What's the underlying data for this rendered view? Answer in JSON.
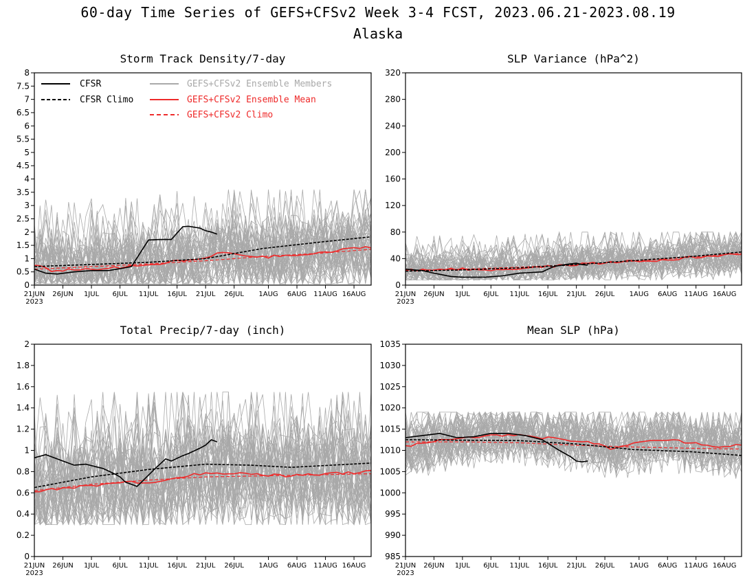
{
  "figure": {
    "title": "60-day Time Series of GEFS+CFSv2 Week 3-4 FCST, 2023.06.21-2023.08.19",
    "subtitle": "Alaska"
  },
  "colors": {
    "cfsr": "#000000",
    "members": "#a9a9a9",
    "ens_mean": "#ee2a2a"
  },
  "legend": {
    "cfsr": "CFSR",
    "cfsr_climo": "CFSR Climo",
    "members": "GEFS+CFSv2 Ensemble Members",
    "ens_mean": "GEFS+CFSv2 Ensemble Mean",
    "climo": "GEFS+CFSv2 Climo"
  },
  "x_ticks": [
    "21JUN",
    "26JUN",
    "1JUL",
    "6JUL",
    "11JUL",
    "16JUL",
    "21JUL",
    "26JUL",
    "1AUG",
    "6AUG",
    "11AUG",
    "16AUG"
  ],
  "x_tick_days": [
    0,
    5,
    10,
    15,
    20,
    25,
    30,
    35,
    41,
    46,
    51,
    56
  ],
  "x_year": "2023",
  "chart_data": [
    {
      "type": "line",
      "title": "Storm Track Density/7-day",
      "ylim": [
        0,
        8
      ],
      "yticks": [
        "0",
        "0.5",
        "1",
        "1.5",
        "2",
        "2.5",
        "3",
        "3.5",
        "4",
        "4.5",
        "5",
        "5.5",
        "6",
        "6.5",
        "7",
        "7.5",
        "8"
      ],
      "ytick_values": [
        0,
        0.5,
        1,
        1.5,
        2,
        2.5,
        3,
        3.5,
        4,
        4.5,
        5,
        5.5,
        6,
        6.5,
        7,
        7.5,
        8
      ],
      "member_spread": [
        0.05,
        3.6
      ],
      "cfsr": {
        "x": [
          0,
          2,
          4,
          7,
          10,
          13,
          15,
          17,
          20,
          22,
          24,
          26,
          27,
          29,
          30,
          31,
          32
        ],
        "y": [
          0.6,
          0.45,
          0.42,
          0.5,
          0.55,
          0.55,
          0.62,
          0.7,
          1.7,
          1.72,
          1.72,
          2.2,
          2.22,
          2.15,
          2.05,
          2.0,
          1.92
        ]
      },
      "cfsr_climo": {
        "x": [
          0,
          10,
          20,
          30,
          40,
          50,
          59
        ],
        "y": [
          0.7,
          0.78,
          0.86,
          1.0,
          1.38,
          1.62,
          1.82
        ]
      },
      "ens_mean": {
        "x": [
          0,
          3,
          6,
          10,
          15,
          20,
          25,
          30,
          33,
          36,
          40,
          43,
          46,
          50,
          53,
          56,
          59
        ],
        "y": [
          0.75,
          0.55,
          0.58,
          0.6,
          0.66,
          0.75,
          0.9,
          1.0,
          1.25,
          1.15,
          1.05,
          1.1,
          1.12,
          1.2,
          1.3,
          1.38,
          1.45
        ]
      },
      "climo": {
        "x": [
          0,
          10,
          20,
          30,
          40,
          50,
          59
        ],
        "y": [
          0.6,
          0.7,
          0.8,
          0.92,
          1.08,
          1.2,
          1.35
        ]
      }
    },
    {
      "type": "line",
      "title": "SLP Variance (hPa^2)",
      "ylim": [
        0,
        320
      ],
      "yticks": [
        "0",
        "40",
        "80",
        "120",
        "160",
        "200",
        "240",
        "280",
        "320"
      ],
      "ytick_values": [
        0,
        40,
        80,
        120,
        160,
        200,
        240,
        280,
        320
      ],
      "member_spread": [
        8,
        80
      ],
      "cfsr": {
        "x": [
          0,
          3,
          5,
          8,
          10,
          14,
          17,
          20,
          24,
          26,
          28,
          30,
          31,
          32
        ],
        "y": [
          24,
          22,
          18,
          13,
          12,
          12,
          14,
          18,
          20,
          28,
          31,
          33,
          31,
          30
        ]
      },
      "cfsr_climo": {
        "x": [
          0,
          10,
          20,
          30,
          40,
          50,
          59
        ],
        "y": [
          21,
          23,
          26,
          31,
          37,
          43,
          50
        ]
      },
      "ens_mean": {
        "x": [
          0,
          5,
          10,
          15,
          20,
          25,
          30,
          35,
          40,
          45,
          50,
          55,
          59
        ],
        "y": [
          22,
          24,
          24,
          23,
          25,
          28,
          31,
          34,
          36,
          37,
          42,
          44,
          47
        ]
      },
      "climo": {
        "x": [
          0,
          10,
          20,
          30,
          40,
          50,
          59
        ],
        "y": [
          22,
          24,
          27,
          31,
          36,
          42,
          48
        ]
      }
    },
    {
      "type": "line",
      "title": "Total Precip/7-day (inch)",
      "ylim": [
        0,
        2
      ],
      "yticks": [
        "0",
        "0.2",
        "0.4",
        "0.6",
        "0.8",
        "1",
        "1.2",
        "1.4",
        "1.6",
        "1.8",
        "2"
      ],
      "ytick_values": [
        0,
        0.2,
        0.4,
        0.6,
        0.8,
        1,
        1.2,
        1.4,
        1.6,
        1.8,
        2
      ],
      "member_spread": [
        0.3,
        1.55
      ],
      "cfsr": {
        "x": [
          0,
          2,
          5,
          7,
          9,
          12,
          14,
          15,
          16,
          18,
          21,
          23,
          24,
          26,
          27,
          29,
          30,
          31,
          32
        ],
        "y": [
          0.93,
          0.96,
          0.9,
          0.86,
          0.87,
          0.83,
          0.78,
          0.75,
          0.7,
          0.66,
          0.82,
          0.92,
          0.9,
          0.95,
          0.97,
          1.02,
          1.05,
          1.1,
          1.08
        ]
      },
      "cfsr_climo": {
        "x": [
          0,
          10,
          20,
          30,
          38,
          45,
          52,
          59
        ],
        "y": [
          0.65,
          0.75,
          0.82,
          0.87,
          0.86,
          0.84,
          0.86,
          0.88
        ]
      },
      "ens_mean": {
        "x": [
          0,
          4,
          8,
          12,
          16,
          20,
          24,
          28,
          32,
          36,
          40,
          44,
          48,
          52,
          56,
          59
        ],
        "y": [
          0.61,
          0.64,
          0.66,
          0.68,
          0.7,
          0.7,
          0.73,
          0.78,
          0.78,
          0.79,
          0.77,
          0.76,
          0.77,
          0.78,
          0.79,
          0.8
        ]
      },
      "climo": {
        "x": [
          0,
          10,
          20,
          30,
          40,
          50,
          59
        ],
        "y": [
          0.62,
          0.68,
          0.72,
          0.75,
          0.76,
          0.77,
          0.78
        ]
      }
    },
    {
      "type": "line",
      "title": "Mean SLP (hPa)",
      "ylim": [
        985,
        1035
      ],
      "yticks": [
        "985",
        "990",
        "995",
        "1000",
        "1005",
        "1010",
        "1015",
        "1020",
        "1025",
        "1030",
        "1035"
      ],
      "ytick_values": [
        985,
        990,
        995,
        1000,
        1005,
        1010,
        1015,
        1020,
        1025,
        1030,
        1035
      ],
      "member_spread": [
        1003,
        1019
      ],
      "cfsr": {
        "x": [
          0,
          3,
          6,
          9,
          12,
          15,
          18,
          21,
          24,
          27,
          29,
          30,
          31,
          32
        ],
        "y": [
          1013,
          1013.5,
          1014,
          1013,
          1013.2,
          1014,
          1014,
          1013.5,
          1012.5,
          1010,
          1008.5,
          1007.5,
          1007.3,
          1007.5
        ]
      },
      "cfsr_climo": {
        "x": [
          0,
          10,
          20,
          30,
          40,
          50,
          59
        ],
        "y": [
          1012.5,
          1012.4,
          1012.3,
          1011.5,
          1010.2,
          1009.7,
          1008.8
        ]
      },
      "ens_mean": {
        "x": [
          0,
          4,
          8,
          12,
          16,
          20,
          24,
          28,
          32,
          36,
          40,
          44,
          48,
          52,
          56,
          59
        ],
        "y": [
          1011,
          1012,
          1012.8,
          1013.2,
          1013.5,
          1013.8,
          1013,
          1012.5,
          1012,
          1010.5,
          1011.5,
          1012.5,
          1012.2,
          1011.5,
          1010.8,
          1011.5
        ]
      },
      "climo": {
        "x": [
          0,
          10,
          20,
          30,
          40,
          50,
          59
        ],
        "y": [
          1012,
          1012,
          1011.8,
          1011.2,
          1010.8,
          1010.5,
          1010.3
        ]
      }
    }
  ]
}
